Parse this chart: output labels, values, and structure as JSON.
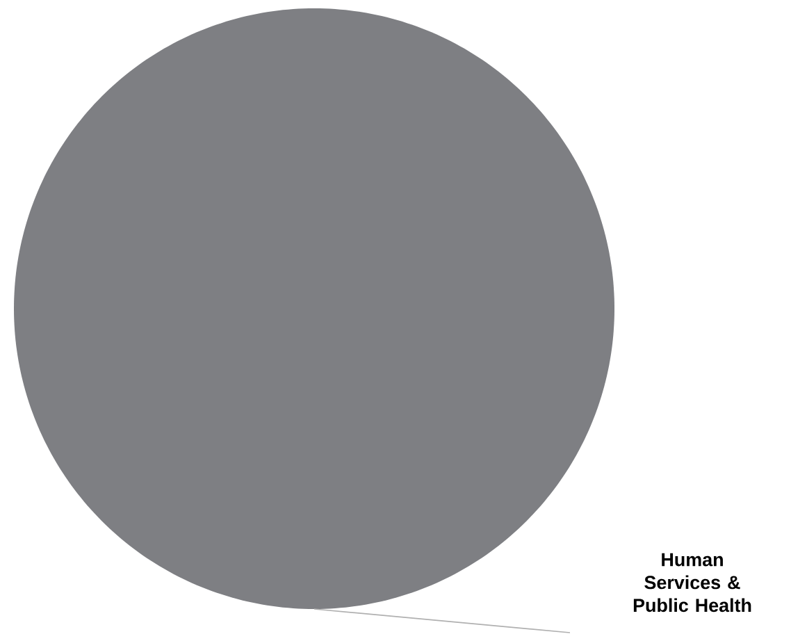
{
  "chart_data": {
    "type": "pie",
    "categories": [
      "Human Services & Public Health"
    ],
    "values": [
      100
    ],
    "colors": [
      "#7e7f83"
    ]
  }
}
